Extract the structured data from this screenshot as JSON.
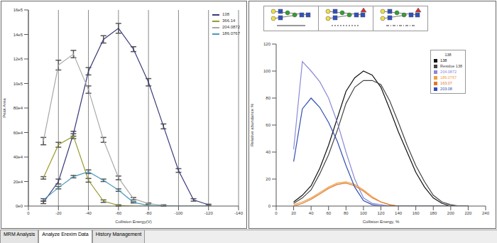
{
  "chart_data": [
    {
      "type": "line",
      "x_label": "Collision Energy(V)",
      "y_label": "Peak Area",
      "x": [
        -10,
        -20,
        -30,
        -40,
        -50,
        -60,
        -70,
        -80,
        -90,
        -100,
        -110,
        -120
      ],
      "xlim": [
        0,
        -140
      ],
      "xticks": [
        0,
        -20,
        -40,
        -60,
        -80,
        -100,
        -120,
        -140
      ],
      "ylim": [
        0,
        1600000
      ],
      "yticks": [
        {
          "value": 0,
          "label": "0e0"
        },
        {
          "value": 200000,
          "label": "20e4"
        },
        {
          "value": 400000,
          "label": "40e4"
        },
        {
          "value": 600000,
          "label": "60e4"
        },
        {
          "value": 800000,
          "label": "80e4"
        },
        {
          "value": 1000000,
          "label": "10e5"
        },
        {
          "value": 1200000,
          "label": "12e5"
        },
        {
          "value": 1400000,
          "label": "14e5"
        },
        {
          "value": 1600000,
          "label": "16e5"
        }
      ],
      "grid": "x",
      "legend": "upper right",
      "series": [
        {
          "name": "138",
          "color": "#3a3a7a",
          "values": [
            30000,
            200000,
            590000,
            1100000,
            1360000,
            1450000,
            1280000,
            1010000,
            650000,
            290000,
            50000,
            10000
          ],
          "errors": [
            10000,
            20000,
            20000,
            30000,
            30000,
            40000,
            20000,
            30000,
            20000,
            15000,
            10000,
            5000
          ]
        },
        {
          "name": "366.14",
          "color": "#9a9a30",
          "values": [
            230000,
            500000,
            570000,
            210000,
            40000,
            5000,
            0,
            0,
            0,
            0,
            0,
            0
          ],
          "errors": [
            10000,
            20000,
            20000,
            15000,
            10000,
            5000,
            0,
            0,
            0,
            0,
            0,
            0
          ]
        },
        {
          "name": "204.0872",
          "color": "#a8a8a8",
          "values": [
            530000,
            1150000,
            1240000,
            950000,
            540000,
            230000,
            60000,
            20000,
            5000,
            0,
            0,
            0
          ],
          "errors": [
            30000,
            40000,
            30000,
            30000,
            20000,
            15000,
            10000,
            5000,
            5000,
            0,
            0,
            0
          ]
        },
        {
          "name": "186.0767",
          "color": "#4a9ab8",
          "values": [
            50000,
            150000,
            240000,
            280000,
            210000,
            130000,
            30000,
            5000,
            0,
            0,
            0,
            0
          ],
          "errors": [
            10000,
            10000,
            10000,
            15000,
            10000,
            10000,
            5000,
            0,
            0,
            0,
            0,
            0
          ]
        }
      ]
    },
    {
      "type": "line",
      "x_label": "Collision Energy, %",
      "y_label": "Relative abundance %",
      "x": [
        20,
        30,
        40,
        50,
        60,
        70,
        80,
        90,
        100,
        110,
        120,
        130,
        140,
        150,
        160,
        170,
        180,
        190,
        200,
        210,
        220
      ],
      "xlim": [
        0,
        240
      ],
      "xticks": [
        0,
        20,
        40,
        60,
        80,
        100,
        120,
        140,
        160,
        180,
        200,
        220,
        240
      ],
      "ylim": [
        0,
        120
      ],
      "yticks": [
        0,
        20,
        40,
        60,
        80,
        100,
        120
      ],
      "grid": false,
      "legend": "upper right",
      "legend_title": "138",
      "series": [
        {
          "name": "138",
          "color": "#111111",
          "values": [
            3,
            8,
            15,
            28,
            45,
            65,
            85,
            95,
            100,
            97,
            88,
            72,
            55,
            40,
            25,
            14,
            6,
            2,
            0,
            0,
            0
          ]
        },
        {
          "name": "Residue 138",
          "color": "#444444",
          "values": [
            2,
            6,
            12,
            24,
            38,
            56,
            76,
            88,
            93,
            93,
            90,
            78,
            62,
            45,
            30,
            18,
            8,
            3,
            1,
            0,
            0
          ]
        },
        {
          "name": "204.0872",
          "color": "#8a8ad8",
          "values": [
            42,
            107,
            100,
            92,
            80,
            62,
            40,
            20,
            6,
            2,
            1,
            0,
            0,
            0,
            0,
            0,
            0,
            0,
            0,
            0,
            0
          ]
        },
        {
          "name": "186.0767",
          "color": "#f0a040",
          "values": [
            1,
            3,
            6,
            10,
            14,
            17,
            18,
            16,
            12,
            7,
            3,
            1,
            0,
            0,
            0,
            0,
            0,
            0,
            0,
            0,
            0
          ]
        },
        {
          "name": "163.07",
          "color": "#e07830",
          "values": [
            0,
            2,
            5,
            9,
            13,
            16,
            17,
            15,
            11,
            6,
            3,
            1,
            0,
            0,
            0,
            0,
            0,
            0,
            0,
            0,
            0
          ]
        },
        {
          "name": "203.08",
          "color": "#3050b0",
          "values": [
            33,
            72,
            80,
            73,
            62,
            48,
            30,
            14,
            4,
            1,
            0,
            0,
            0,
            0,
            0,
            0,
            0,
            0,
            0,
            0,
            0
          ]
        }
      ]
    }
  ],
  "tabs": [
    "MRM Analysis",
    "Analyze Erexim Data",
    "History Management"
  ]
}
